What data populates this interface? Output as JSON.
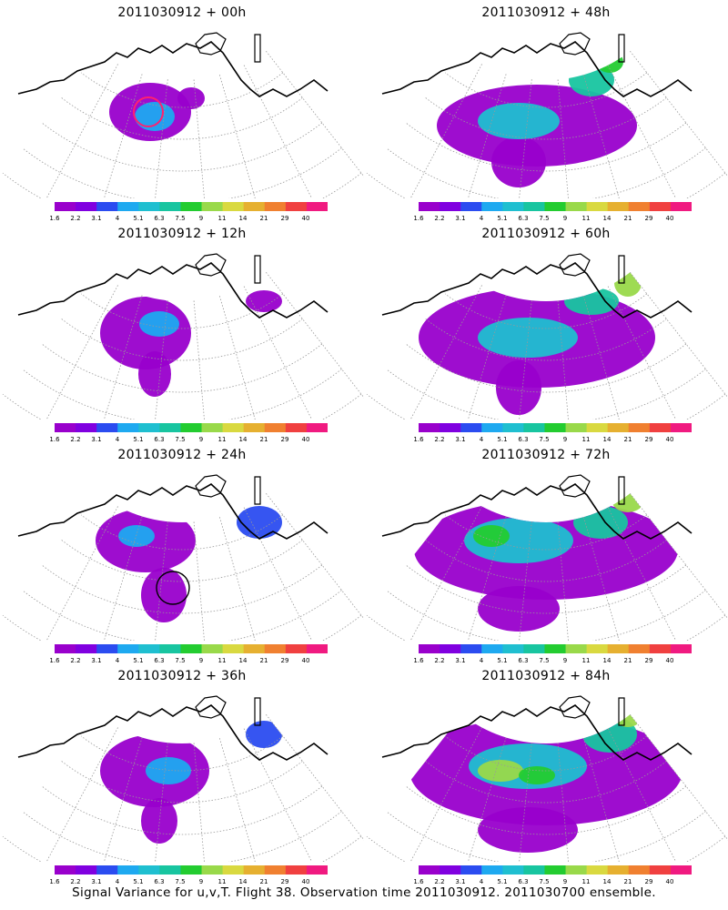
{
  "colorbar": {
    "colors": [
      "#9900cc",
      "#8000e0",
      "#2b4cf0",
      "#1ea9f0",
      "#1fbfd0",
      "#18c5a0",
      "#23cc30",
      "#99d94a",
      "#d9d940",
      "#e6b030",
      "#f08030",
      "#f04040",
      "#f01a80"
    ],
    "labels": [
      "1.6",
      "2.2",
      "3.1",
      "4",
      "5.1",
      "6.3",
      "7.5",
      "9",
      "11",
      "14",
      "21",
      "29",
      "40"
    ]
  },
  "chart_data": {
    "type": "heatmap",
    "description": "",
    "legend_placement": "below each panel",
    "panels": [
      {
        "title": "2011030912 + 00h",
        "position": "row 1 left",
        "max_level": "6.3"
      },
      {
        "title": "2011030912 + 48h",
        "position": "row 1 right",
        "max_level": "9"
      },
      {
        "title": "2011030912 + 12h",
        "position": "row 2 left",
        "max_level": "5.1"
      },
      {
        "title": "2011030912 + 60h",
        "position": "row 2 right",
        "max_level": "9"
      },
      {
        "title": "2011030912 + 24h",
        "position": "row 3 left",
        "max_level": "5.1"
      },
      {
        "title": "2011030912 + 72h",
        "position": "row 3 right",
        "max_level": "11"
      },
      {
        "title": "2011030912 + 36h",
        "position": "row 4 left",
        "max_level": "5.1"
      },
      {
        "title": "2011030912 + 84h",
        "position": "row 4 right",
        "max_level": "11"
      }
    ]
  },
  "caption": "Signal Variance for u,v,T. Flight 38. Observation time 2011030912. 2011030700 ensemble."
}
